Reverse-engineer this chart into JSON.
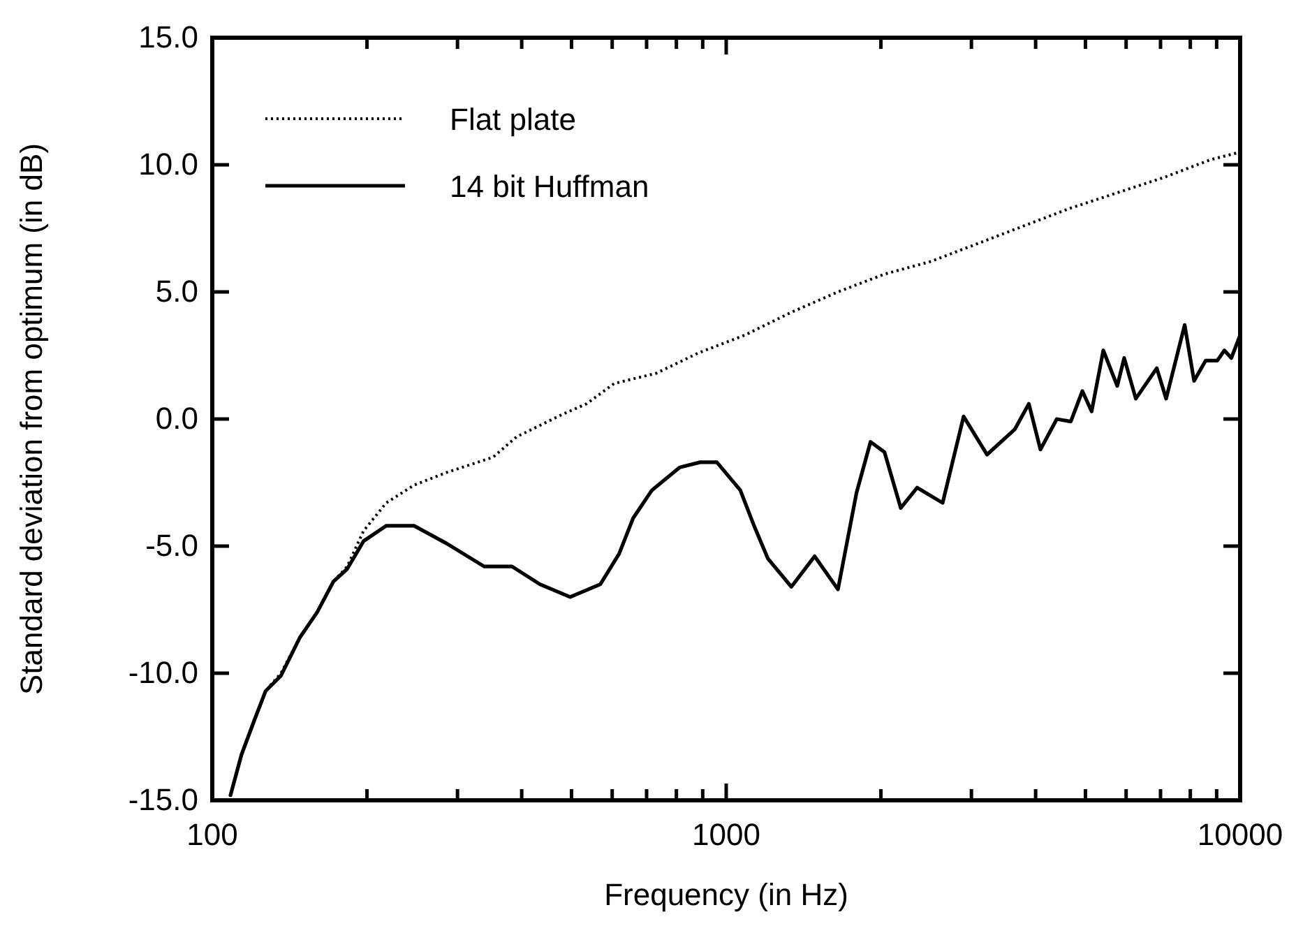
{
  "chart_data": {
    "type": "line",
    "xlabel": "Frequency (in Hz)",
    "ylabel": "Standard deviation from optimum (in dB)",
    "log": "x",
    "xlim": [
      100,
      10000
    ],
    "ylim": [
      -15,
      15
    ],
    "xticks": [
      100,
      {
        "value": 200,
        "label": null
      },
      {
        "value": 300,
        "label": null
      },
      {
        "value": 400,
        "label": null
      },
      {
        "value": 500,
        "label": null
      },
      {
        "value": 600,
        "label": null
      },
      {
        "value": 700,
        "label": null
      },
      {
        "value": 800,
        "label": null
      },
      {
        "value": 900,
        "label": null
      },
      1000,
      {
        "value": 2000,
        "label": null
      },
      {
        "value": 3000,
        "label": null
      },
      {
        "value": 4000,
        "label": null
      },
      {
        "value": 5000,
        "label": null
      },
      {
        "value": 6000,
        "label": null
      },
      {
        "value": 7000,
        "label": null
      },
      {
        "value": 8000,
        "label": null
      },
      {
        "value": 9000,
        "label": null
      },
      10000
    ],
    "yticks": [
      {
        "value": -15,
        "label": "-15.0"
      },
      {
        "value": -10,
        "label": "-10.0"
      },
      {
        "value": -5,
        "label": "-5.0"
      },
      {
        "value": 0,
        "label": "0.0"
      },
      {
        "value": 5,
        "label": "5.0"
      },
      {
        "value": 10,
        "label": "10.0"
      },
      {
        "value": 15,
        "label": "15.0"
      }
    ],
    "grid": false,
    "legend": "top left",
    "marker": "none",
    "series": [
      {
        "name": "Flat plate",
        "color": "#000000",
        "line_style": "dotted",
        "x": [
          108.5,
          114,
          121,
          127,
          136,
          148,
          160,
          172,
          183,
          197,
          218,
          247,
          286,
          352,
          391,
          482,
          535,
          606,
          731,
          883,
          1087,
          1339,
          1650,
          2032,
          2503,
          3084,
          3798,
          4682,
          5767,
          7102,
          8753,
          10000
        ],
        "values": [
          -14.8,
          -13.2,
          -11.8,
          -10.7,
          -10.0,
          -8.6,
          -7.6,
          -6.4,
          -5.8,
          -4.4,
          -3.3,
          -2.6,
          -2.1,
          -1.5,
          -0.7,
          0.2,
          0.6,
          1.4,
          1.8,
          2.6,
          3.3,
          4.2,
          5.0,
          5.7,
          6.2,
          6.9,
          7.6,
          8.3,
          8.9,
          9.5,
          10.2,
          10.5
        ]
      },
      {
        "name": "14 bit Huffman",
        "color": "#000000",
        "line_style": "solid",
        "x": [
          108.5,
          114,
          121,
          127,
          136,
          148,
          160,
          172,
          183,
          197,
          218,
          247,
          286,
          338,
          383,
          434,
          497,
          569,
          619,
          659,
          717,
          812,
          890,
          959,
          1065,
          1133,
          1206,
          1339,
          1486,
          1650,
          1793,
          1909,
          2032,
          2186,
          2352,
          2637,
          2897,
          3217,
          3645,
          3880,
          4087,
          4398,
          4682,
          4932,
          5141,
          5417,
          5767,
          5948,
          6266,
          6883,
          7178,
          7800,
          8135,
          8570,
          9030,
          9318,
          9614,
          10000
        ],
        "values": [
          -14.8,
          -13.2,
          -11.8,
          -10.7,
          -10.1,
          -8.6,
          -7.6,
          -6.4,
          -5.9,
          -4.8,
          -4.2,
          -4.2,
          -4.9,
          -5.8,
          -5.8,
          -6.5,
          -7.0,
          -6.5,
          -5.3,
          -3.9,
          -2.8,
          -1.9,
          -1.7,
          -1.7,
          -2.8,
          -4.2,
          -5.5,
          -6.6,
          -5.4,
          -6.7,
          -2.9,
          -0.9,
          -1.3,
          -3.5,
          -2.7,
          -3.3,
          0.1,
          -1.4,
          -0.4,
          0.6,
          -1.2,
          0.0,
          -0.1,
          1.1,
          0.3,
          2.7,
          1.3,
          2.4,
          0.8,
          2.0,
          0.8,
          3.7,
          1.5,
          2.3,
          2.3,
          2.7,
          2.4,
          3.3
        ]
      }
    ]
  }
}
